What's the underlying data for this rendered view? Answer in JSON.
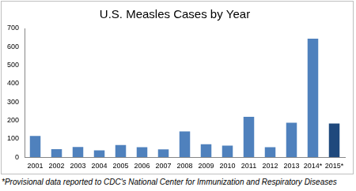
{
  "chart_data": {
    "type": "bar",
    "title": "U.S. Measles Cases by Year",
    "footnote": "*Provisional data reported to CDC's National Center for Immunization and Respiratory Diseases",
    "categories": [
      "2001",
      "2002",
      "2003",
      "2004",
      "2005",
      "2006",
      "2007",
      "2008",
      "2009",
      "2010",
      "2011",
      "2012",
      "2013",
      "2014*",
      "2015*"
    ],
    "values": [
      116,
      44,
      56,
      37,
      66,
      55,
      43,
      140,
      71,
      63,
      220,
      55,
      187,
      644,
      183
    ],
    "colors": [
      "#4f81bd",
      "#4f81bd",
      "#4f81bd",
      "#4f81bd",
      "#4f81bd",
      "#4f81bd",
      "#4f81bd",
      "#4f81bd",
      "#4f81bd",
      "#4f81bd",
      "#4f81bd",
      "#4f81bd",
      "#4f81bd",
      "#4f81bd",
      "#1f497d"
    ],
    "ylim": [
      0,
      700
    ],
    "yticks": [
      0,
      100,
      200,
      300,
      400,
      500,
      600,
      700
    ],
    "grid": false
  }
}
